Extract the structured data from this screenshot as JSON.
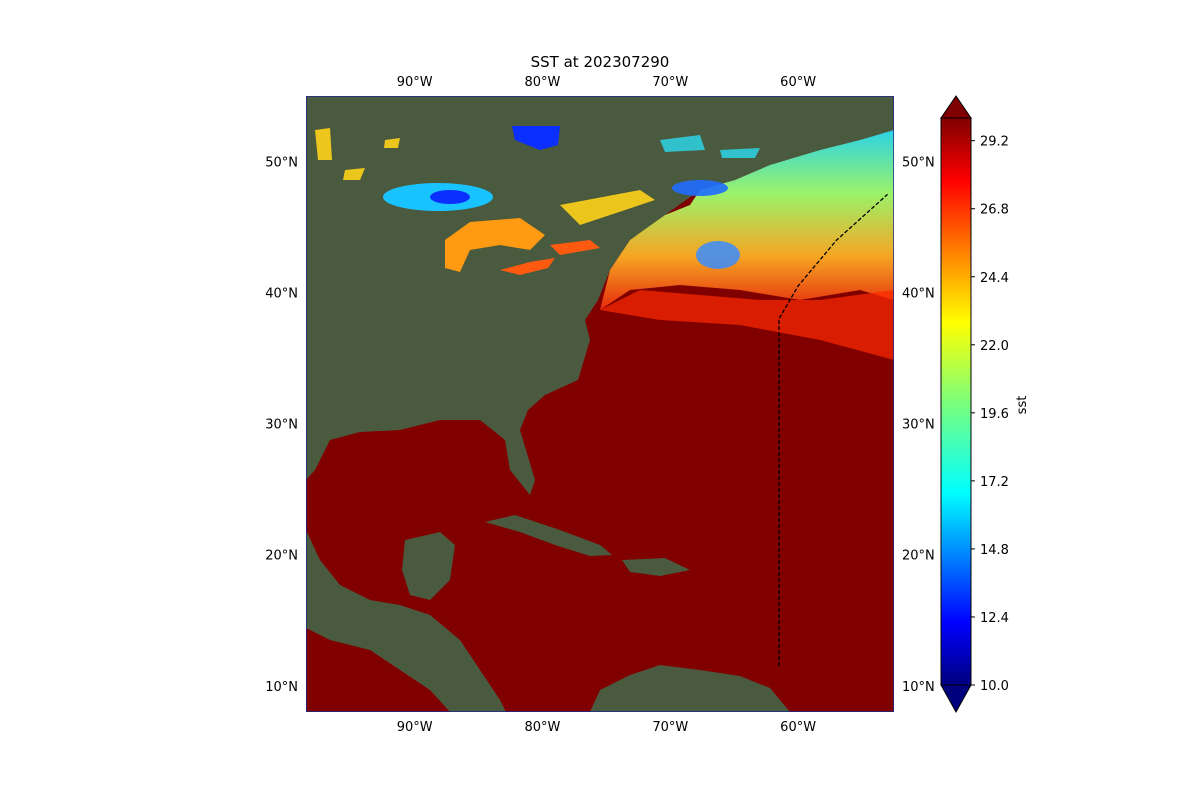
{
  "title": "SST at 202307290",
  "map": {
    "lon_range": [
      -98.5,
      -52.5
    ],
    "lat_range": [
      8,
      55
    ],
    "lon_ticks": [
      {
        "value": -90,
        "label": "90°W"
      },
      {
        "value": -80,
        "label": "80°W"
      },
      {
        "value": -70,
        "label": "70°W"
      },
      {
        "value": -60,
        "label": "60°W"
      }
    ],
    "lat_ticks": [
      {
        "value": 10,
        "label": "10°N"
      },
      {
        "value": 20,
        "label": "20°N"
      },
      {
        "value": 30,
        "label": "30°N"
      },
      {
        "value": 40,
        "label": "40°N"
      },
      {
        "value": 50,
        "label": "50°N"
      }
    ],
    "land_color": "#4a5a3e",
    "warm_ocean_color": "#800000",
    "track": [
      [
        -61.5,
        11.5
      ],
      [
        -61.5,
        38
      ],
      [
        -60,
        40.5
      ],
      [
        -57,
        44
      ],
      [
        -53,
        47.5
      ]
    ]
  },
  "colorbar": {
    "label": "sst",
    "min": 10.0,
    "max": 30.0,
    "extend": "both",
    "colormap": "jet",
    "ticks": [
      "10.0",
      "12.4",
      "14.8",
      "17.2",
      "19.6",
      "22.0",
      "24.4",
      "26.8",
      "29.2"
    ]
  }
}
